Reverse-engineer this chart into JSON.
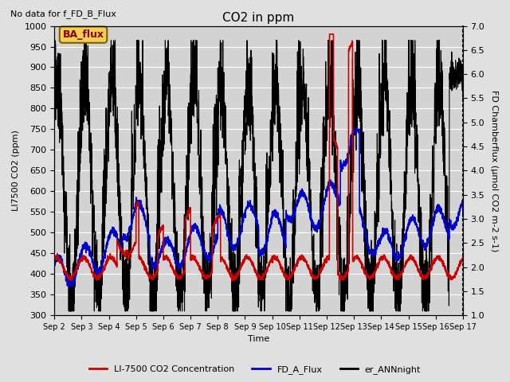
{
  "title": "CO2 in ppm",
  "top_left_text": "No data for f_FD_B_Flux",
  "annotation_box": "BA_flux",
  "xlabel": "Time",
  "ylabel_left": "LI7500 CO2 (ppm)",
  "ylabel_right": "FD Chamberflux (μmol CO2 m-2 s-1)",
  "ylim_left": [
    300,
    1000
  ],
  "ylim_right": [
    1.0,
    7.0
  ],
  "yticks_left": [
    300,
    350,
    400,
    450,
    500,
    550,
    600,
    650,
    700,
    750,
    800,
    850,
    900,
    950,
    1000
  ],
  "yticks_right": [
    1.0,
    1.5,
    2.0,
    2.5,
    3.0,
    3.5,
    4.0,
    4.5,
    5.0,
    5.5,
    6.0,
    6.5,
    7.0
  ],
  "xtick_labels": [
    "Sep 2",
    "Sep 3",
    "Sep 4",
    "Sep 5",
    "Sep 6",
    "Sep 7",
    "Sep 8",
    "Sep 9",
    "Sep 10",
    "Sep 11",
    "Sep 12",
    "Sep 13",
    "Sep 14",
    "Sep 15",
    "Sep 16",
    "Sep 17"
  ],
  "legend_entries": [
    {
      "label": "LI-7500 CO2 Concentration",
      "color": "#cc0000",
      "lw": 1.2
    },
    {
      "label": "FD_A_Flux",
      "color": "#0000cc",
      "lw": 1.2
    },
    {
      "label": "er_ANNnight",
      "color": "#000000",
      "lw": 0.8
    }
  ],
  "background_color": "#e0e0e0",
  "plot_bg_color": "#d3d3d3",
  "grid_color": "#ffffff",
  "annotation_facecolor": "#f0d050",
  "annotation_edgecolor": "#806000",
  "annotation_textcolor": "#880000",
  "n_points": 3000
}
